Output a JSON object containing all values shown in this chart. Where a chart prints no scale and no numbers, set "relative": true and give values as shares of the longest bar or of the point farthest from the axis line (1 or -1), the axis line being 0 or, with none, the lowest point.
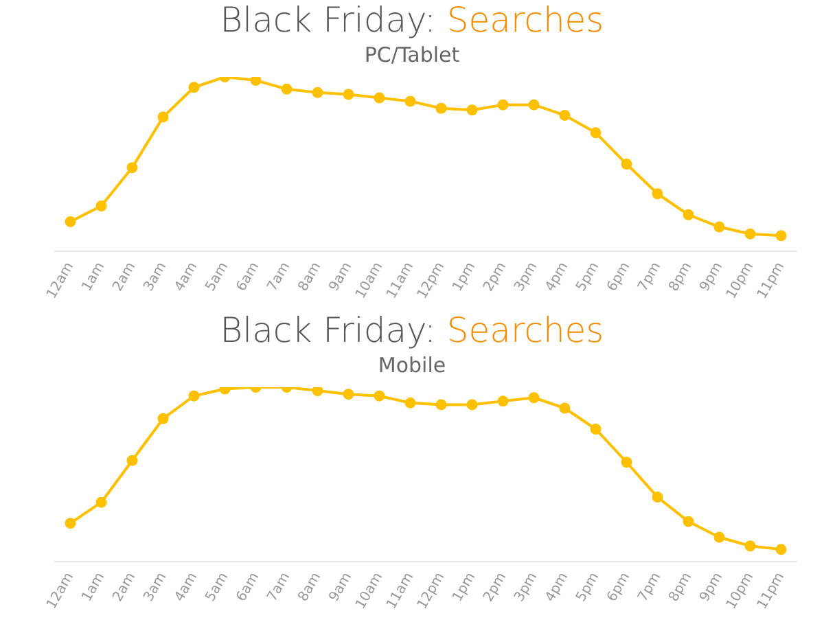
{
  "chart_data": [
    {
      "type": "line",
      "title": "Black Friday: Searches",
      "subtitle": "PC/Tablet",
      "relative": true,
      "marker": "circle",
      "grid": false,
      "legend": false,
      "categories": [
        "12am",
        "1am",
        "2am",
        "3am",
        "4am",
        "5am",
        "6am",
        "7am",
        "8am",
        "9am",
        "10am",
        "11am",
        "12pm",
        "1pm",
        "2pm",
        "3pm",
        "4pm",
        "5pm",
        "6pm",
        "7pm",
        "8pm",
        "9pm",
        "10pm",
        "11pm"
      ],
      "series": [
        {
          "color": "#ffc000",
          "values": [
            0.17,
            0.26,
            0.48,
            0.77,
            0.94,
            1,
            0.98,
            0.93,
            0.91,
            0.9,
            0.88,
            0.86,
            0.82,
            0.81,
            0.84,
            0.84,
            0.78,
            0.68,
            0.5,
            0.33,
            0.21,
            0.14,
            0.1,
            0.09
          ]
        }
      ]
    },
    {
      "type": "line",
      "title": "Black Friday: Searches",
      "subtitle": "Mobile",
      "relative": true,
      "marker": "circle",
      "grid": false,
      "legend": false,
      "categories": [
        "12am",
        "1am",
        "2am",
        "3am",
        "4am",
        "5am",
        "6am",
        "7am",
        "8am",
        "9am",
        "10am",
        "11am",
        "12pm",
        "1pm",
        "2pm",
        "3pm",
        "4pm",
        "5pm",
        "6pm",
        "7pm",
        "8pm",
        "9pm",
        "10pm",
        "11pm"
      ],
      "series": [
        {
          "color": "#ffc000",
          "values": [
            0.22,
            0.34,
            0.58,
            0.82,
            0.95,
            0.99,
            1,
            1,
            0.98,
            0.96,
            0.95,
            0.91,
            0.9,
            0.9,
            0.92,
            0.94,
            0.88,
            0.76,
            0.57,
            0.37,
            0.23,
            0.14,
            0.09,
            0.07
          ]
        }
      ]
    }
  ]
}
